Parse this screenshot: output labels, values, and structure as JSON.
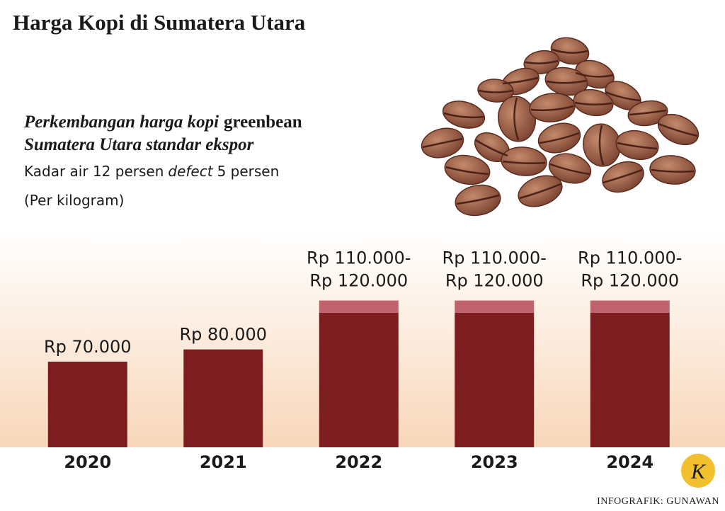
{
  "chart_data": {
    "type": "range_bar",
    "title": "Harga Kopi di Sumatera Utara",
    "subtitle": {
      "italic": "Perkembangan harga kopi",
      "term": "greenbean",
      "line2": "Sumatera Utara standar ekspor"
    },
    "note": [
      "Kadar air 12 persen",
      "defect",
      "5 persen"
    ],
    "unit": "(Per kilogram)",
    "categories": [
      "2020",
      "2021",
      "2022",
      "2023",
      "2024"
    ],
    "values": [
      70000,
      80000,
      110000,
      110000,
      110000
    ],
    "value_labels": [
      "Rp 70.000",
      "Rp 80.000",
      "Rp 110.000-",
      "Rp 110.000-",
      "Rp 110.000-"
    ],
    "range_high": [
      null,
      null,
      120000,
      120000,
      120000
    ],
    "range_high_labels": [
      null,
      null,
      "Rp 120.000",
      "Rp 120.000",
      "Rp 120.000"
    ],
    "color": "#7e1d20",
    "range_color": "#c0636e",
    "logo": "K",
    "source": "INFOGRAFIK: GUNAWAN"
  }
}
